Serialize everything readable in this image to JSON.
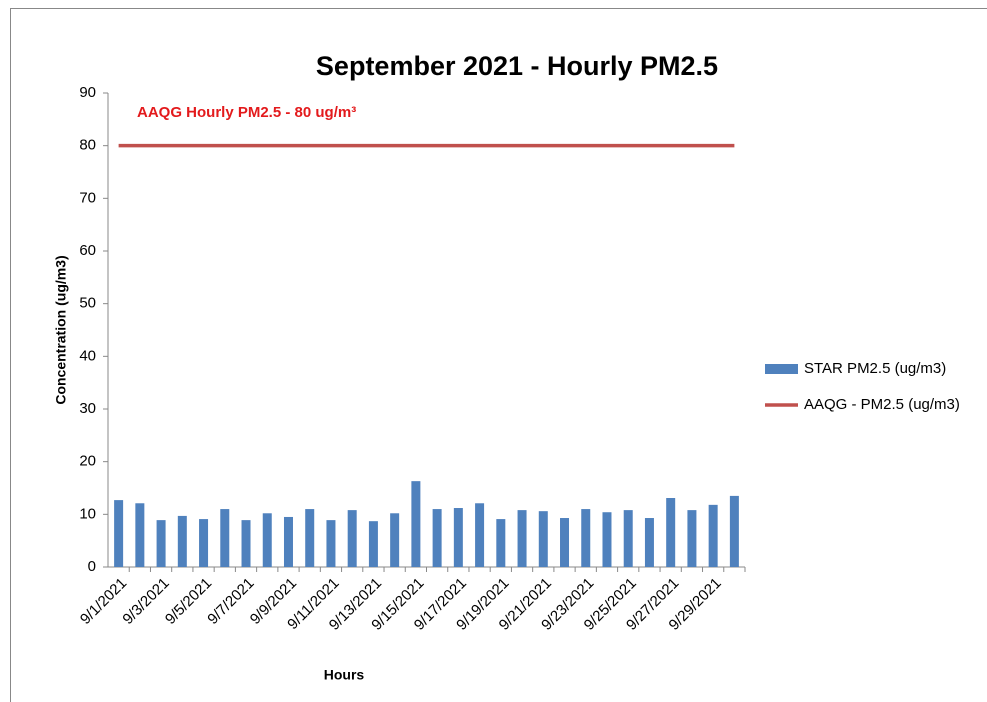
{
  "chart_data": {
    "type": "bar",
    "title": "September 2021 - Hourly PM2.5",
    "x_label": "Hours",
    "y_label": "Concentration (ug/m3)",
    "annotations": [
      "AAQG Hourly PM2.5 - 80 ug/m³"
    ],
    "categories": [
      "9/1/2021",
      null,
      "9/3/2021",
      null,
      "9/5/2021",
      null,
      "9/7/2021",
      null,
      "9/9/2021",
      null,
      "9/11/2021",
      null,
      "9/13/2021",
      null,
      "9/15/2021",
      null,
      "9/17/2021",
      null,
      "9/19/2021",
      null,
      "9/21/2021",
      null,
      "9/23/2021",
      null,
      "9/25/2021",
      null,
      "9/27/2021",
      null,
      "9/29/2021",
      null
    ],
    "series": [
      {
        "name": "STAR PM2.5 (ug/m3)",
        "type": "bar",
        "color": "#4f81bd",
        "values": [
          12.7,
          12.1,
          8.9,
          9.7,
          9.1,
          11.0,
          8.9,
          10.2,
          9.5,
          11.0,
          8.9,
          10.8,
          8.7,
          10.2,
          16.3,
          11.0,
          11.2,
          12.1,
          9.1,
          10.8,
          10.6,
          9.3,
          11.0,
          10.4,
          10.8,
          9.3,
          13.1,
          10.8,
          11.8,
          13.5
        ]
      },
      {
        "name": "AAQG - PM2.5 (ug/m3)",
        "type": "line",
        "color": "#c0504d",
        "values": [
          80,
          80,
          80,
          80,
          80,
          80,
          80,
          80,
          80,
          80,
          80,
          80,
          80,
          80,
          80,
          80,
          80,
          80,
          80,
          80,
          80,
          80,
          80,
          80,
          80,
          80,
          80,
          80,
          80,
          80
        ]
      }
    ],
    "ylim": [
      0,
      90
    ],
    "yticks": [
      0,
      10,
      20,
      30,
      40,
      50,
      60,
      70,
      80,
      90
    ],
    "grid": false,
    "legend": "right"
  }
}
